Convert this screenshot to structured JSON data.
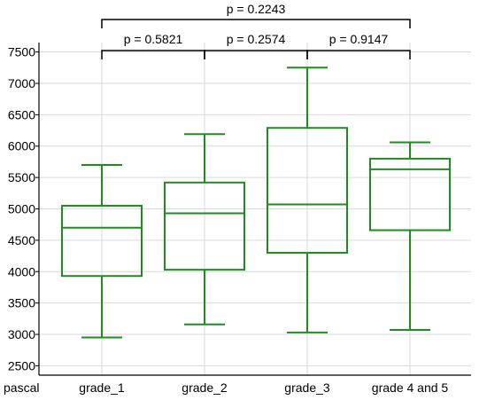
{
  "chart_data": {
    "type": "boxplot",
    "xlabel": "pascal",
    "ylabel": "",
    "ylim": [
      2350,
      7650
    ],
    "yticks": [
      2500,
      3000,
      3500,
      4000,
      4500,
      5000,
      5500,
      6000,
      6500,
      7000,
      7500
    ],
    "grid": true,
    "categories": [
      "grade_1",
      "grade_2",
      "grade_3",
      "grade 4 and 5"
    ],
    "boxes": [
      {
        "category": "grade_1",
        "min": 2950,
        "q1": 3930,
        "median": 4700,
        "q3": 5050,
        "max": 5700
      },
      {
        "category": "grade_2",
        "min": 3160,
        "q1": 4030,
        "median": 4930,
        "q3": 5420,
        "max": 6190
      },
      {
        "category": "grade_3",
        "min": 3030,
        "q1": 4300,
        "median": 5070,
        "q3": 6290,
        "max": 7250
      },
      {
        "category": "grade 4 and 5",
        "min": 3070,
        "q1": 4660,
        "median": 5630,
        "q3": 5800,
        "max": 6060
      }
    ],
    "comparisons": [
      {
        "from": 0,
        "to": 1,
        "label": "p = 0.5821",
        "level": 0
      },
      {
        "from": 1,
        "to": 2,
        "label": "p = 0.2574",
        "level": 0
      },
      {
        "from": 2,
        "to": 3,
        "label": "p = 0.9147",
        "level": 0
      },
      {
        "from": 0,
        "to": 3,
        "label": "p = 0.2243",
        "level": 1
      }
    ],
    "colors": {
      "box": "#1e8c1e",
      "grid": "#d9d9d9",
      "axis": "#000000"
    }
  }
}
